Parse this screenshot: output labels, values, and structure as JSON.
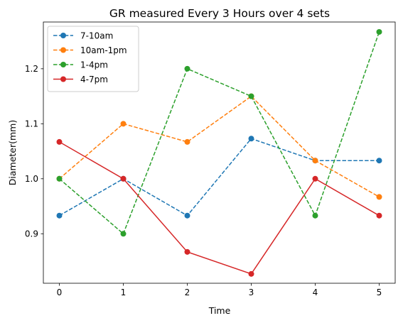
{
  "chart_data": {
    "type": "line",
    "title": "GR measured Every 3 Hours over 4 sets",
    "xlabel": "Time",
    "ylabel": "Diameter(mm)",
    "x": [
      0,
      1,
      2,
      3,
      4,
      5
    ],
    "xlim": [
      -0.25,
      5.25
    ],
    "ylim": [
      0.81,
      1.285
    ],
    "xticks": [
      "0",
      "1",
      "2",
      "3",
      "4",
      "5"
    ],
    "yticks": [
      "0.9",
      "1.0",
      "1.1",
      "1.2"
    ],
    "grid": false,
    "legend_position": "top-left",
    "series": [
      {
        "name": "7-10am",
        "color": "#1f77b4",
        "linestyle": "dashed",
        "marker": "circle",
        "values": [
          0.933,
          1.0,
          0.933,
          1.073,
          1.033,
          1.033
        ]
      },
      {
        "name": "10am-1pm",
        "color": "#ff7f0e",
        "linestyle": "dashed",
        "marker": "circle",
        "values": [
          1.0,
          1.1,
          1.067,
          1.15,
          1.033,
          0.967
        ]
      },
      {
        "name": "1-4pm",
        "color": "#2ca02c",
        "linestyle": "dashed",
        "marker": "circle",
        "values": [
          1.0,
          0.9,
          1.2,
          1.15,
          0.933,
          1.267
        ]
      },
      {
        "name": "4-7pm",
        "color": "#d62728",
        "linestyle": "solid",
        "marker": "circle",
        "values": [
          1.067,
          1.0,
          0.867,
          0.827,
          1.0,
          0.933
        ]
      }
    ]
  }
}
